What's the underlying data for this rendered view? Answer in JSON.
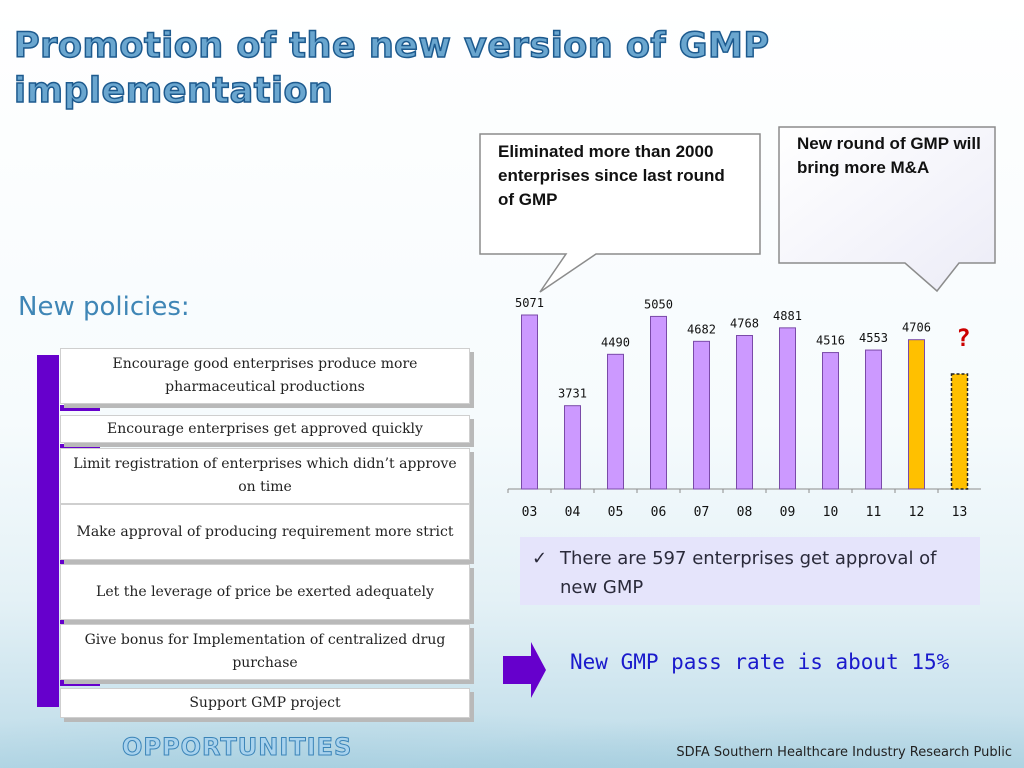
{
  "slide": {
    "title_line1": "Promotion of the new version of GMP",
    "title_line2": "implementation",
    "subhead": "New policies:",
    "policies": [
      "Encourage good enterprises produce more pharmaceutical productions",
      "Encourage enterprises get approved quickly",
      "Limit registration of enterprises which didn’t approve on time",
      "Make approval of producing requirement more strict",
      "Let the leverage of price be exerted adequately",
      "Give bonus for Implementation of centralized drug purchase",
      "Support GMP project"
    ],
    "callout_left": "Eliminated more than 2000 enterprises since last round of GMP",
    "callout_right": "New round of GMP will bring more M&A",
    "note_check": "✓",
    "note": "There are 597 enterprises get approval of new GMP",
    "pass_rate": "New GMP pass rate is about 15%",
    "opportunities": "OPPORTUNITIES",
    "footer": "SDFA Southern Healthcare Industry Research Public"
  },
  "colors": {
    "bar": "#cc99ff",
    "bar_highlight": "#ffc000",
    "accent_purple": "#6600cc",
    "question": "#cc0000"
  },
  "chart_data": {
    "type": "bar",
    "categories": [
      "03",
      "04",
      "05",
      "06",
      "07",
      "08",
      "09",
      "10",
      "11",
      "12",
      "13"
    ],
    "values": [
      5071,
      3731,
      4490,
      5050,
      4682,
      4768,
      4881,
      4516,
      4553,
      4706,
      null
    ],
    "data_labels": [
      "5071",
      "3731",
      "4490",
      "5050",
      "4682",
      "4768",
      "4881",
      "4516",
      "4553",
      "4706",
      "?"
    ],
    "estimated_values": {
      "13": 4200
    },
    "highlight_categories": [
      "12",
      "13"
    ],
    "title": "",
    "xlabel": "",
    "ylabel": "",
    "ylim": [
      2500,
      5200
    ],
    "grid": false,
    "legend": "none"
  }
}
